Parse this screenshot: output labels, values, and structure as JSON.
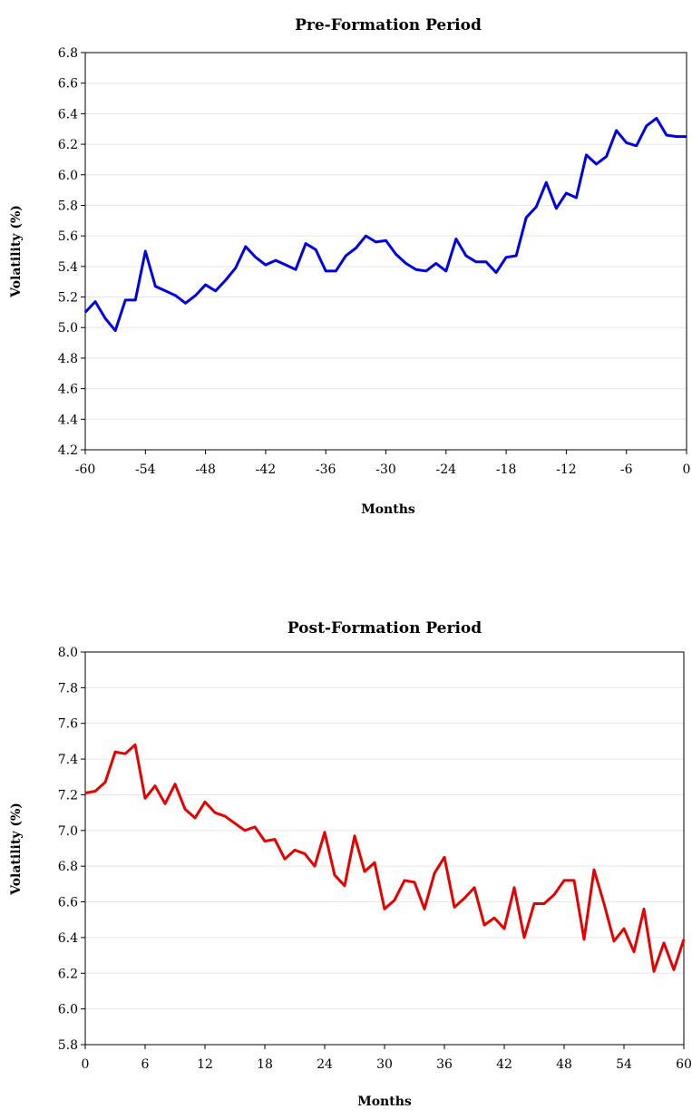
{
  "chart_data": [
    {
      "type": "line",
      "title": "Pre-Formation Period",
      "xlabel": "Months",
      "ylabel": "Volatility (%)",
      "xlim": [
        -60,
        0
      ],
      "ylim": [
        4.2,
        6.8
      ],
      "xticks": [
        "-60",
        "-54",
        "-48",
        "-42",
        "-36",
        "-30",
        "-24",
        "-18",
        "-12",
        "-6",
        "0"
      ],
      "yticks": [
        "4.2",
        "4.4",
        "4.6",
        "4.8",
        "5.0",
        "5.2",
        "5.4",
        "5.6",
        "5.8",
        "6.0",
        "6.2",
        "6.4",
        "6.6",
        "6.8"
      ],
      "grid": "horizontal",
      "color": "#0000e6",
      "series": [
        {
          "x": [
            -60,
            -59,
            -58,
            -57,
            -56,
            -55,
            -54,
            -53,
            -52,
            -51,
            -50,
            -49,
            -48,
            -47,
            -46,
            -45,
            -44,
            -43,
            -42,
            -41,
            -40,
            -39,
            -38,
            -37,
            -36,
            -35,
            -34,
            -33,
            -32,
            -31,
            -30,
            -29,
            -28,
            -27,
            -26,
            -25,
            -24,
            -23,
            -22,
            -21,
            -20,
            -19,
            -18,
            -17,
            -16,
            -15,
            -14,
            -13,
            -12,
            -11,
            -10,
            -9,
            -8,
            -7,
            -6,
            -5,
            -4,
            -3,
            -2,
            -1,
            0
          ],
          "values": [
            5.1,
            5.17,
            5.06,
            4.98,
            5.18,
            5.18,
            5.5,
            5.27,
            5.24,
            5.21,
            5.16,
            5.21,
            5.28,
            5.24,
            5.31,
            5.39,
            5.53,
            5.46,
            5.41,
            5.44,
            5.41,
            5.38,
            5.55,
            5.51,
            5.37,
            5.37,
            5.47,
            5.52,
            5.6,
            5.56,
            5.57,
            5.48,
            5.42,
            5.38,
            5.37,
            5.42,
            5.37,
            5.58,
            5.47,
            5.43,
            5.43,
            5.36,
            5.46,
            5.47,
            5.72,
            5.79,
            5.95,
            5.78,
            5.88,
            5.85,
            6.13,
            6.07,
            6.12,
            6.29,
            6.21,
            6.19,
            6.32,
            6.37,
            6.26,
            6.25,
            6.25
          ]
        }
      ]
    },
    {
      "type": "line",
      "title": "Post-Formation Period",
      "xlabel": "Months",
      "ylabel": "Volatility (%)",
      "xlim": [
        0,
        60
      ],
      "ylim": [
        5.8,
        8.0
      ],
      "xticks": [
        "0",
        "6",
        "12",
        "18",
        "24",
        "30",
        "36",
        "42",
        "48",
        "54",
        "60"
      ],
      "yticks": [
        "5.8",
        "6.0",
        "6.2",
        "6.4",
        "6.6",
        "6.8",
        "7.0",
        "7.2",
        "7.4",
        "7.6",
        "7.8",
        "8.0"
      ],
      "grid": "horizontal",
      "color": "#e60000",
      "series": [
        {
          "x": [
            0,
            1,
            2,
            3,
            4,
            5,
            6,
            7,
            8,
            9,
            10,
            11,
            12,
            13,
            14,
            15,
            16,
            17,
            18,
            19,
            20,
            21,
            22,
            23,
            24,
            25,
            26,
            27,
            28,
            29,
            30,
            31,
            32,
            33,
            34,
            35,
            36,
            37,
            38,
            39,
            40,
            41,
            42,
            43,
            44,
            45,
            46,
            47,
            48,
            49,
            50,
            51,
            52,
            53,
            54,
            55,
            56,
            57,
            58,
            59,
            60
          ],
          "values": [
            7.21,
            7.22,
            7.27,
            7.44,
            7.43,
            7.48,
            7.18,
            7.25,
            7.15,
            7.26,
            7.12,
            7.07,
            7.16,
            7.1,
            7.08,
            7.04,
            7.0,
            7.02,
            6.94,
            6.95,
            6.84,
            6.89,
            6.87,
            6.8,
            6.99,
            6.75,
            6.69,
            6.97,
            6.77,
            6.82,
            6.56,
            6.61,
            6.72,
            6.71,
            6.56,
            6.76,
            6.85,
            6.57,
            6.62,
            6.68,
            6.47,
            6.51,
            6.45,
            6.68,
            6.4,
            6.59,
            6.59,
            6.64,
            6.72,
            6.72,
            6.39,
            6.78,
            6.59,
            6.38,
            6.45,
            6.32,
            6.56,
            6.21,
            6.37,
            6.22,
            6.39
          ]
        }
      ]
    }
  ]
}
